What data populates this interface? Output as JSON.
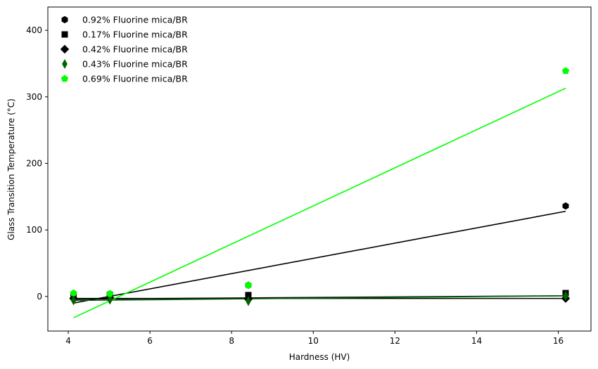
{
  "chart_data": {
    "type": "scatter",
    "title": "",
    "xlabel": "Hardness (HV)",
    "ylabel": "Glass Transition Temperature (°C)",
    "xlim": [
      3.5,
      16.8
    ],
    "ylim": [
      -52,
      435
    ],
    "xticks": [
      4,
      6,
      8,
      10,
      12,
      14,
      16
    ],
    "yticks": [
      0,
      100,
      200,
      300,
      400
    ],
    "grid": false,
    "legend_position": "top-left",
    "series": [
      {
        "name": "0.92% Fluorine mica/BR",
        "marker": "hexagon",
        "color": "#000000",
        "x": [
          4.13,
          5.02,
          8.41,
          16.18
        ],
        "y": [
          2,
          4,
          17,
          136
        ],
        "fit": {
          "x": [
            4.13,
            16.18
          ],
          "y": [
            -10,
            128
          ]
        }
      },
      {
        "name": "0.17% Fluorine mica/BR",
        "marker": "square",
        "color": "#000000",
        "x": [
          4.13,
          5.02,
          8.41,
          16.18
        ],
        "y": [
          0,
          2,
          2,
          5
        ],
        "fit": {
          "x": [
            4.13,
            16.18
          ],
          "y": [
            -4,
            1
          ]
        }
      },
      {
        "name": "0.42% Fluorine mica/BR",
        "marker": "diamond",
        "color": "#000000",
        "x": [
          4.13,
          5.02,
          8.41,
          16.18
        ],
        "y": [
          -3,
          -2,
          -4,
          -3
        ],
        "fit": {
          "x": [
            4.13,
            16.18
          ],
          "y": [
            -3,
            -3
          ]
        }
      },
      {
        "name": "0.43% Fluorine mica/BR",
        "marker": "thin_diamond",
        "color": "#006400",
        "x": [
          4.13,
          5.02,
          8.41,
          16.18
        ],
        "y": [
          -6,
          -5,
          -7,
          1
        ],
        "fit": {
          "x": [
            4.13,
            16.18
          ],
          "y": [
            -6,
            1
          ]
        }
      },
      {
        "name": "0.69% Fluorine mica/BR",
        "marker": "pentagon",
        "color": "#00ff00",
        "x": [
          4.13,
          5.02,
          8.41,
          16.18
        ],
        "y": [
          5,
          4,
          17,
          339
        ],
        "fit": {
          "x": [
            4.13,
            16.18
          ],
          "y": [
            -32,
            313
          ]
        }
      }
    ]
  }
}
